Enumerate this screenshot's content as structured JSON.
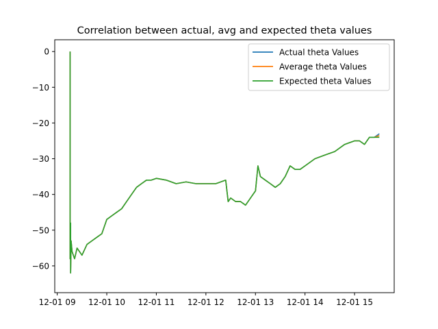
{
  "chart_data": {
    "type": "line",
    "title": "Correlation between actual, avg and expected theta values",
    "xlabel": "",
    "ylabel": "",
    "x_ticks": [
      "12-01 09",
      "12-01 10",
      "12-01 11",
      "12-01 12",
      "12-01 13",
      "12-01 14",
      "12-01 15"
    ],
    "x_tick_hours": [
      9,
      10,
      11,
      12,
      13,
      14,
      15
    ],
    "xlim_hours": [
      8.95,
      15.8
    ],
    "ylim": [
      -67.5,
      3.3
    ],
    "y_ticks": [
      0,
      -10,
      -20,
      -30,
      -40,
      -50,
      -60
    ],
    "grid": false,
    "legend_position": "top-right",
    "x_hours": [
      9.26,
      9.26,
      9.27,
      9.27,
      9.28,
      9.3,
      9.35,
      9.4,
      9.5,
      9.6,
      9.7,
      9.8,
      9.9,
      10.0,
      10.1,
      10.2,
      10.3,
      10.4,
      10.5,
      10.6,
      10.7,
      10.8,
      10.9,
      11.0,
      11.2,
      11.4,
      11.6,
      11.8,
      12.0,
      12.2,
      12.3,
      12.4,
      12.45,
      12.5,
      12.6,
      12.7,
      12.8,
      12.9,
      13.0,
      13.05,
      13.1,
      13.2,
      13.3,
      13.4,
      13.5,
      13.6,
      13.7,
      13.8,
      13.9,
      14.0,
      14.2,
      14.4,
      14.6,
      14.8,
      15.0,
      15.1,
      15.2,
      15.3,
      15.4,
      15.5
    ],
    "series": [
      {
        "name": "Actual theta Values",
        "color": "#1f77b4",
        "values": [
          0.0,
          -58.0,
          -48.0,
          -62.0,
          -53.0,
          -56.0,
          -58.0,
          -55.0,
          -57.0,
          -54.0,
          -53.0,
          -52.0,
          -51.0,
          -47.0,
          -46.0,
          -45.0,
          -44.0,
          -42.0,
          -40.0,
          -38.0,
          -37.0,
          -36.0,
          -36.0,
          -35.5,
          -36.0,
          -37.0,
          -36.5,
          -37.0,
          -37.0,
          -37.0,
          -36.5,
          -36.0,
          -42.0,
          -41.0,
          -42.0,
          -42.0,
          -43.0,
          -41.0,
          -39.0,
          -32.0,
          -35.0,
          -36.0,
          -37.0,
          -38.0,
          -37.0,
          -35.0,
          -32.0,
          -33.0,
          -33.0,
          -32.0,
          -30.0,
          -29.0,
          -28.0,
          -26.0,
          -25.0,
          -25.0,
          -26.0,
          -24.0,
          -24.0,
          -23.0
        ]
      },
      {
        "name": "Average theta Values",
        "color": "#ff7f0e",
        "values": [
          0.0,
          -58.0,
          -48.0,
          -62.0,
          -53.0,
          -56.0,
          -58.0,
          -55.0,
          -57.0,
          -54.0,
          -53.0,
          -52.0,
          -51.0,
          -47.0,
          -46.0,
          -45.0,
          -44.0,
          -42.0,
          -40.0,
          -38.0,
          -37.0,
          -36.0,
          -36.0,
          -35.5,
          -36.0,
          -37.0,
          -36.5,
          -37.0,
          -37.0,
          -37.0,
          -36.5,
          -36.0,
          -42.0,
          -41.0,
          -42.0,
          -42.0,
          -43.0,
          -41.0,
          -39.0,
          -32.0,
          -35.0,
          -36.0,
          -37.0,
          -38.0,
          -37.0,
          -35.0,
          -32.0,
          -33.0,
          -33.0,
          -32.0,
          -30.0,
          -29.0,
          -28.0,
          -26.0,
          -25.0,
          -25.0,
          -26.0,
          -24.0,
          -24.0,
          -23.5
        ]
      },
      {
        "name": "Expected theta Values",
        "color": "#2ca02c",
        "values": [
          0.0,
          -58.0,
          -48.0,
          -62.0,
          -53.0,
          -56.0,
          -58.0,
          -55.0,
          -57.0,
          -54.0,
          -53.0,
          -52.0,
          -51.0,
          -47.0,
          -46.0,
          -45.0,
          -44.0,
          -42.0,
          -40.0,
          -38.0,
          -37.0,
          -36.0,
          -36.0,
          -35.5,
          -36.0,
          -37.0,
          -36.5,
          -37.0,
          -37.0,
          -37.0,
          -36.5,
          -36.0,
          -42.0,
          -41.0,
          -42.0,
          -42.0,
          -43.0,
          -41.0,
          -39.0,
          -32.0,
          -35.0,
          -36.0,
          -37.0,
          -38.0,
          -37.0,
          -35.0,
          -32.0,
          -33.0,
          -33.0,
          -32.0,
          -30.0,
          -29.0,
          -28.0,
          -26.0,
          -25.0,
          -25.0,
          -26.0,
          -24.0,
          -24.0,
          -24.0
        ]
      }
    ]
  }
}
